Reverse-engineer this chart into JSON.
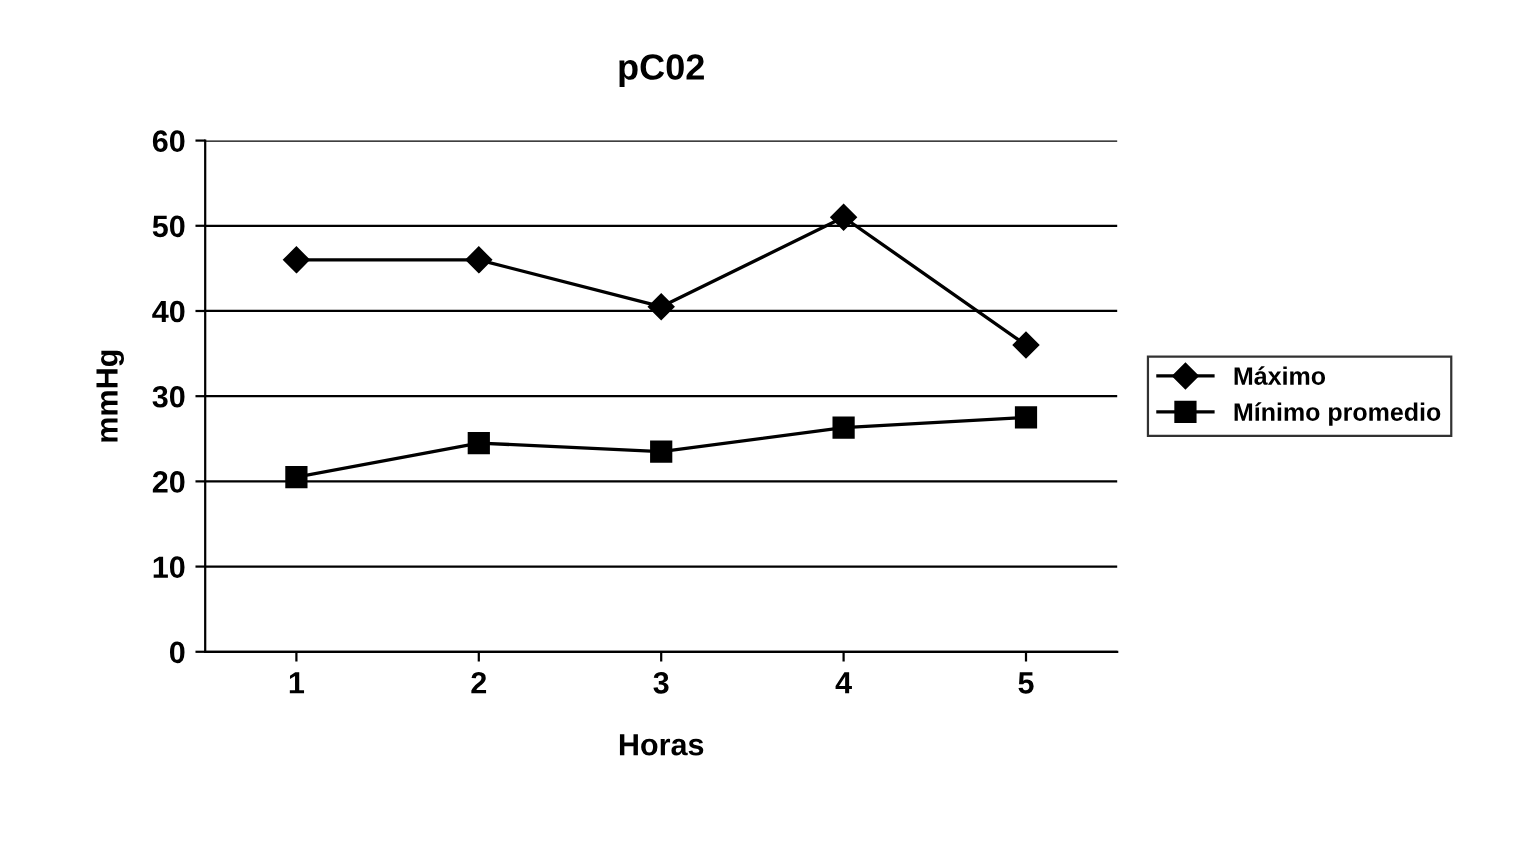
{
  "chart_data": {
    "type": "line",
    "title": "pC02",
    "xlabel": "Horas",
    "ylabel": "mmHg",
    "categories": [
      "1",
      "2",
      "3",
      "4",
      "5"
    ],
    "series": [
      {
        "name": "Máximo",
        "color": "#000000",
        "marker": "diamond",
        "values": [
          46,
          46,
          40.5,
          51,
          36
        ]
      },
      {
        "name": "Mínimo promedio",
        "color": "#000000",
        "marker": "square",
        "values": [
          20.5,
          24.5,
          23.5,
          26.3,
          27.5
        ]
      }
    ],
    "ylim": [
      0,
      60
    ],
    "yticks": [
      0,
      10,
      20,
      30,
      40,
      50,
      60
    ],
    "grid": "y",
    "legend": "right",
    "line_style": "solid"
  }
}
